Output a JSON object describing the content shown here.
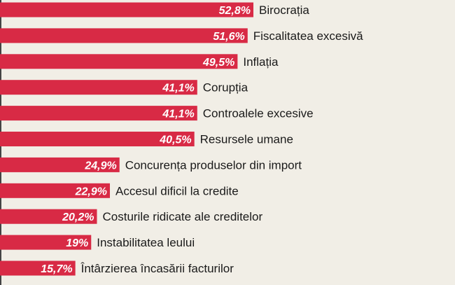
{
  "chart_data": {
    "type": "bar",
    "orientation": "horizontal",
    "categories": [
      "Birocrația",
      "Fiscalitatea excesivă",
      "Inflația",
      "Corupția",
      "Controalele excesive",
      "Resursele umane",
      "Concurența produselor din import",
      "Accesul dificil la credite",
      "Costurile ridicate ale creditelor",
      "Instabilitatea leului",
      "Întârzierea încasării facturilor"
    ],
    "values": [
      52.8,
      51.6,
      49.5,
      41.1,
      41.1,
      40.5,
      24.9,
      22.9,
      20.2,
      19,
      15.7
    ],
    "value_labels": [
      "52,8%",
      "51,6%",
      "49,5%",
      "41,1%",
      "41,1%",
      "40,5%",
      "24,9%",
      "22,9%",
      "20,2%",
      "19%",
      "15,7%"
    ],
    "value_unit": "%",
    "xlim": [
      0,
      52.8
    ],
    "grid": false,
    "colors": {
      "bar": "#d82a45",
      "bar_label": "#ffffff",
      "category_label": "#1a1a1a",
      "background": "#f1eee6"
    }
  }
}
